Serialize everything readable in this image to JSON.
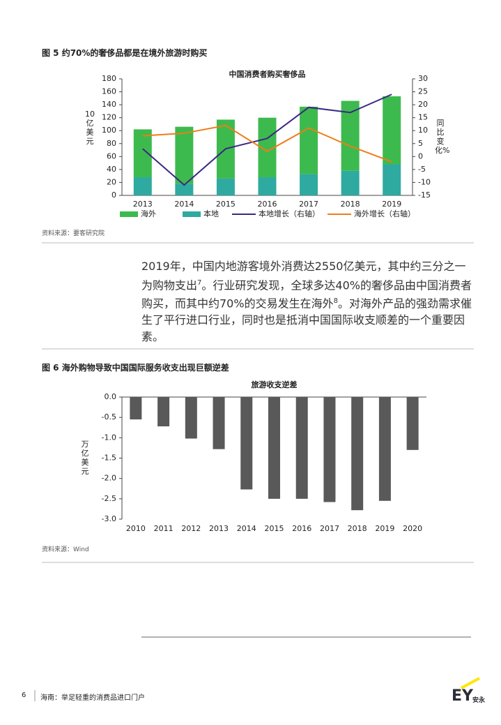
{
  "figure5": {
    "heading": "图 5  约70%的奢侈品都是在境外旅游时购买",
    "source": "资料来源：要客研究院"
  },
  "paragraph": [
    "2019年，中国内地游客境外消费达2550亿美元，其中约三分之一为购物支出",
    "7",
    "。行业研究发现，全球多达40%的奢侈品由中国消费者购买，而其中约70%的交易发生在海外",
    "8",
    "。对海外产品的强劲需求催生了平行进口行业，同时也是抵消中国国际收支顺差的一个重要因素。"
  ],
  "figure6": {
    "heading": "图 6  海外购物导致中国国际服务收支出现巨额逆差",
    "source": "资料来源：Wind"
  },
  "footer": {
    "page": "6",
    "title": "海南：举足轻重的消费品进口门户",
    "logo": "EY",
    "logo_cn": "安永"
  },
  "chart_data": [
    {
      "type": "combo",
      "title": "中国消费者购买奢侈品",
      "ylabel": "10亿美元",
      "y2label": "同比变化%",
      "categories": [
        "2013",
        "2014",
        "2015",
        "2016",
        "2017",
        "2018",
        "2019"
      ],
      "series": [
        {
          "name": "海外",
          "type": "bar",
          "color": "#3dba4e",
          "values": [
            74,
            88,
            91,
            92,
            104,
            108,
            105
          ]
        },
        {
          "name": "本地",
          "type": "bar",
          "color": "#2eaaa0",
          "values": [
            28,
            18,
            26,
            28,
            33,
            38,
            48
          ]
        },
        {
          "name": "本地增长（右轴）",
          "type": "line",
          "axis": "y2",
          "color": "#3b2883",
          "values": [
            3,
            -11,
            3,
            7,
            19,
            17,
            24
          ]
        },
        {
          "name": "海外增长（右轴）",
          "type": "line",
          "axis": "y2",
          "color": "#f07c18",
          "values": [
            8,
            9,
            12,
            2,
            11,
            4,
            -2
          ]
        }
      ],
      "ylim": [
        0,
        180
      ],
      "yticks": [
        0,
        20,
        40,
        60,
        80,
        100,
        120,
        140,
        160,
        180
      ],
      "y2lim": [
        -15,
        30
      ],
      "y2ticks": [
        -15,
        -10,
        -5,
        0,
        5,
        10,
        15,
        20,
        25,
        30
      ],
      "grid": false
    },
    {
      "type": "bar",
      "title": "旅游收支逆差",
      "ylabel": "万亿美元",
      "categories": [
        "2010",
        "2011",
        "2012",
        "2013",
        "2014",
        "2015",
        "2016",
        "2017",
        "2018",
        "2019",
        "2020"
      ],
      "values": [
        -0.55,
        -0.72,
        -1.02,
        -1.28,
        -2.27,
        -2.5,
        -2.5,
        -2.58,
        -2.78,
        -2.55,
        -1.3
      ],
      "color": "#595959",
      "ylim": [
        -3.0,
        0.0
      ],
      "yticks": [
        {
          "value": 0,
          "label": "0.0"
        },
        {
          "value": -0.5,
          "label": "-0.5"
        },
        {
          "value": -1,
          "label": "-1.0"
        },
        {
          "value": -1.5,
          "label": "-1.5"
        },
        {
          "value": -2,
          "label": "-2.0"
        },
        {
          "value": -2.5,
          "label": "-2.5"
        },
        {
          "value": -3,
          "label": "-3.0"
        }
      ],
      "grid": false
    }
  ]
}
